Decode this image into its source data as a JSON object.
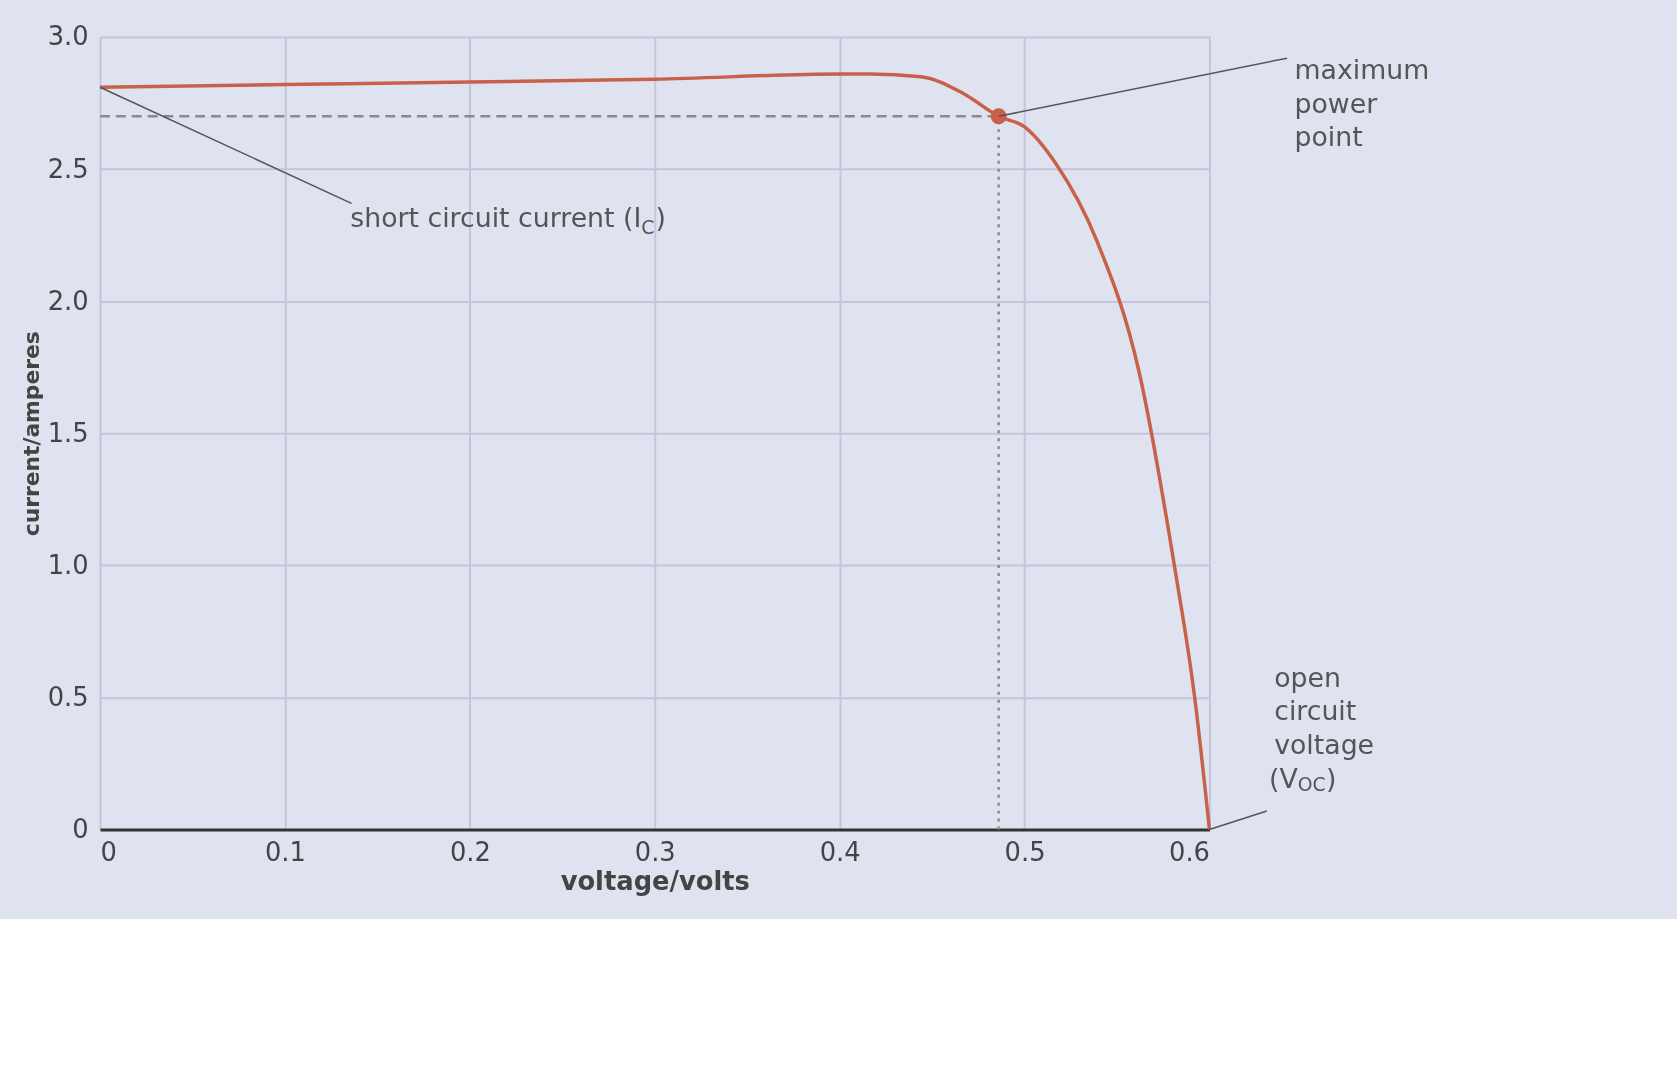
{
  "chart_data": {
    "type": "line",
    "xlabel": "voltage/volts",
    "ylabel": "current/amperes",
    "xlim": [
      0,
      0.6
    ],
    "ylim": [
      0,
      3.0
    ],
    "xticks": [
      0,
      0.1,
      0.2,
      0.3,
      0.4,
      0.5,
      0.6
    ],
    "yticks": [
      0,
      0.5,
      {
        "value": 1,
        "label": "1.0"
      },
      1.5,
      {
        "value": 2,
        "label": "2.0"
      },
      2.5,
      {
        "value": 3,
        "label": "3.0"
      }
    ],
    "grid": true,
    "line_style": "solid",
    "series": [
      {
        "type": "line",
        "color": "#c8604a",
        "x": [
          0,
          0.1,
          0.2,
          0.3,
          0.4,
          0.416,
          0.444,
          0.466,
          0.486,
          0.5,
          0.517,
          0.539,
          0.562,
          0.581,
          0.592,
          0.6
        ],
        "values": [
          2.81,
          2.82,
          2.83,
          2.84,
          2.86,
          2.86,
          2.85,
          2.79,
          2.7,
          2.66,
          2.52,
          2.23,
          1.73,
          1.0,
          0.5,
          0
        ]
      },
      {
        "type": "scatter",
        "marker": "circle",
        "color": "#c8604a",
        "x": [
          0.486
        ],
        "values": [
          2.7
        ]
      }
    ],
    "ref_lines": [
      {
        "axis": "x",
        "value": 0.486,
        "color": "#8a8a8a",
        "line_style": "dotted"
      },
      {
        "axis": "y",
        "value": 2.7,
        "color": "#8a8a8a",
        "line_style": "dashed"
      }
    ],
    "annotations": [
      {
        "text": "maximum power point",
        "x": 0.486,
        "y": 2.7
      },
      {
        "text": "short circuit current (I$_{C}$)",
        "x": 0,
        "y": 2.81
      },
      {
        "text": "open circuit voltage (V$_{OC}$)",
        "x": 0.6,
        "y": 0
      }
    ]
  }
}
